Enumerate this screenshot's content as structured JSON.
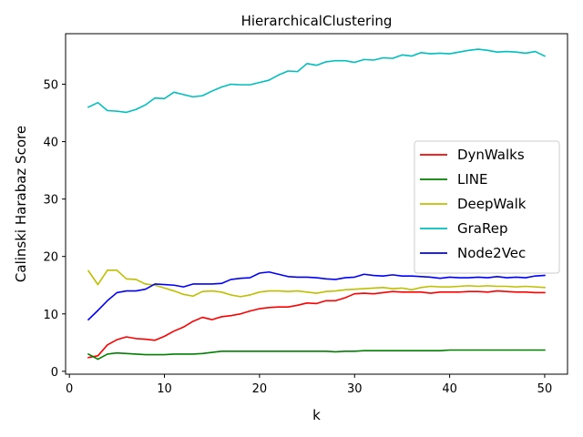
{
  "chart_data": {
    "type": "line",
    "title": "HierarchicalClustering",
    "xlabel": "k",
    "ylabel": "Calinski Harabaz Score",
    "xlim": [
      -0.4,
      52.4
    ],
    "ylim": [
      -0.5,
      58.8
    ],
    "xticks": [
      0,
      10,
      20,
      30,
      40,
      50
    ],
    "yticks": [
      0,
      10,
      20,
      30,
      40,
      50
    ],
    "grid": false,
    "legend_position": "center-right",
    "x": [
      2,
      3,
      4,
      5,
      6,
      7,
      8,
      9,
      10,
      11,
      12,
      13,
      14,
      15,
      16,
      17,
      18,
      19,
      20,
      21,
      22,
      23,
      24,
      25,
      26,
      27,
      28,
      29,
      30,
      31,
      32,
      33,
      34,
      35,
      36,
      37,
      38,
      39,
      40,
      41,
      42,
      43,
      44,
      45,
      46,
      47,
      48,
      49,
      50
    ],
    "series": [
      {
        "name": "DynWalks",
        "color": "#ff0000",
        "values": [
          2.4,
          2.7,
          4.6,
          5.5,
          6.0,
          5.7,
          5.6,
          5.4,
          6.1,
          7.0,
          7.7,
          8.7,
          9.4,
          9.0,
          9.5,
          9.7,
          10.0,
          10.5,
          10.9,
          11.1,
          11.2,
          11.2,
          11.5,
          11.9,
          11.8,
          12.3,
          12.3,
          12.8,
          13.5,
          13.6,
          13.5,
          13.7,
          13.9,
          13.8,
          13.8,
          13.8,
          13.6,
          13.8,
          13.8,
          13.8,
          13.9,
          13.9,
          13.8,
          14.0,
          13.9,
          13.8,
          13.8,
          13.7,
          13.7
        ]
      },
      {
        "name": "LINE",
        "color": "#008000",
        "values": [
          3.0,
          2.1,
          3.0,
          3.2,
          3.1,
          3.0,
          2.9,
          2.9,
          2.9,
          3.0,
          3.0,
          3.0,
          3.1,
          3.3,
          3.5,
          3.5,
          3.5,
          3.5,
          3.5,
          3.5,
          3.5,
          3.5,
          3.5,
          3.5,
          3.5,
          3.5,
          3.4,
          3.5,
          3.5,
          3.6,
          3.6,
          3.6,
          3.6,
          3.6,
          3.6,
          3.6,
          3.6,
          3.6,
          3.7,
          3.7,
          3.7,
          3.7,
          3.7,
          3.7,
          3.7,
          3.7,
          3.7,
          3.7,
          3.7
        ]
      },
      {
        "name": "DeepWalk",
        "color": "#bfbf00",
        "values": [
          17.5,
          15.1,
          17.6,
          17.6,
          16.1,
          16.0,
          15.2,
          15.0,
          14.5,
          14.0,
          13.4,
          13.1,
          13.9,
          14.0,
          13.8,
          13.3,
          13.0,
          13.3,
          13.8,
          14.0,
          14.0,
          13.9,
          14.0,
          13.8,
          13.6,
          13.9,
          14.0,
          14.2,
          14.3,
          14.4,
          14.5,
          14.6,
          14.4,
          14.5,
          14.2,
          14.6,
          14.8,
          14.7,
          14.7,
          14.8,
          14.9,
          14.8,
          14.9,
          14.8,
          14.8,
          14.7,
          14.8,
          14.7,
          14.6
        ]
      },
      {
        "name": "GraRep",
        "color": "#00bfbf",
        "values": [
          46.0,
          46.8,
          45.4,
          45.3,
          45.1,
          45.6,
          46.4,
          47.6,
          47.5,
          48.6,
          48.2,
          47.8,
          48.0,
          48.8,
          49.5,
          50.0,
          49.9,
          49.9,
          50.3,
          50.7,
          51.6,
          52.3,
          52.2,
          53.6,
          53.3,
          53.9,
          54.1,
          54.1,
          53.8,
          54.3,
          54.2,
          54.6,
          54.5,
          55.1,
          54.9,
          55.5,
          55.3,
          55.4,
          55.3,
          55.6,
          55.9,
          56.1,
          55.9,
          55.6,
          55.7,
          55.6,
          55.4,
          55.7,
          54.9
        ]
      },
      {
        "name": "Node2Vec",
        "color": "#0000ff",
        "values": [
          9.0,
          10.6,
          12.3,
          13.7,
          14.0,
          14.0,
          14.3,
          15.2,
          15.1,
          15.0,
          14.7,
          15.2,
          15.2,
          15.2,
          15.3,
          16.0,
          16.2,
          16.3,
          17.1,
          17.3,
          16.9,
          16.5,
          16.4,
          16.4,
          16.3,
          16.1,
          16.0,
          16.3,
          16.4,
          16.9,
          16.7,
          16.6,
          16.8,
          16.6,
          16.6,
          16.5,
          16.4,
          16.2,
          16.4,
          16.3,
          16.3,
          16.4,
          16.3,
          16.5,
          16.3,
          16.4,
          16.3,
          16.6,
          16.7
        ]
      }
    ]
  }
}
